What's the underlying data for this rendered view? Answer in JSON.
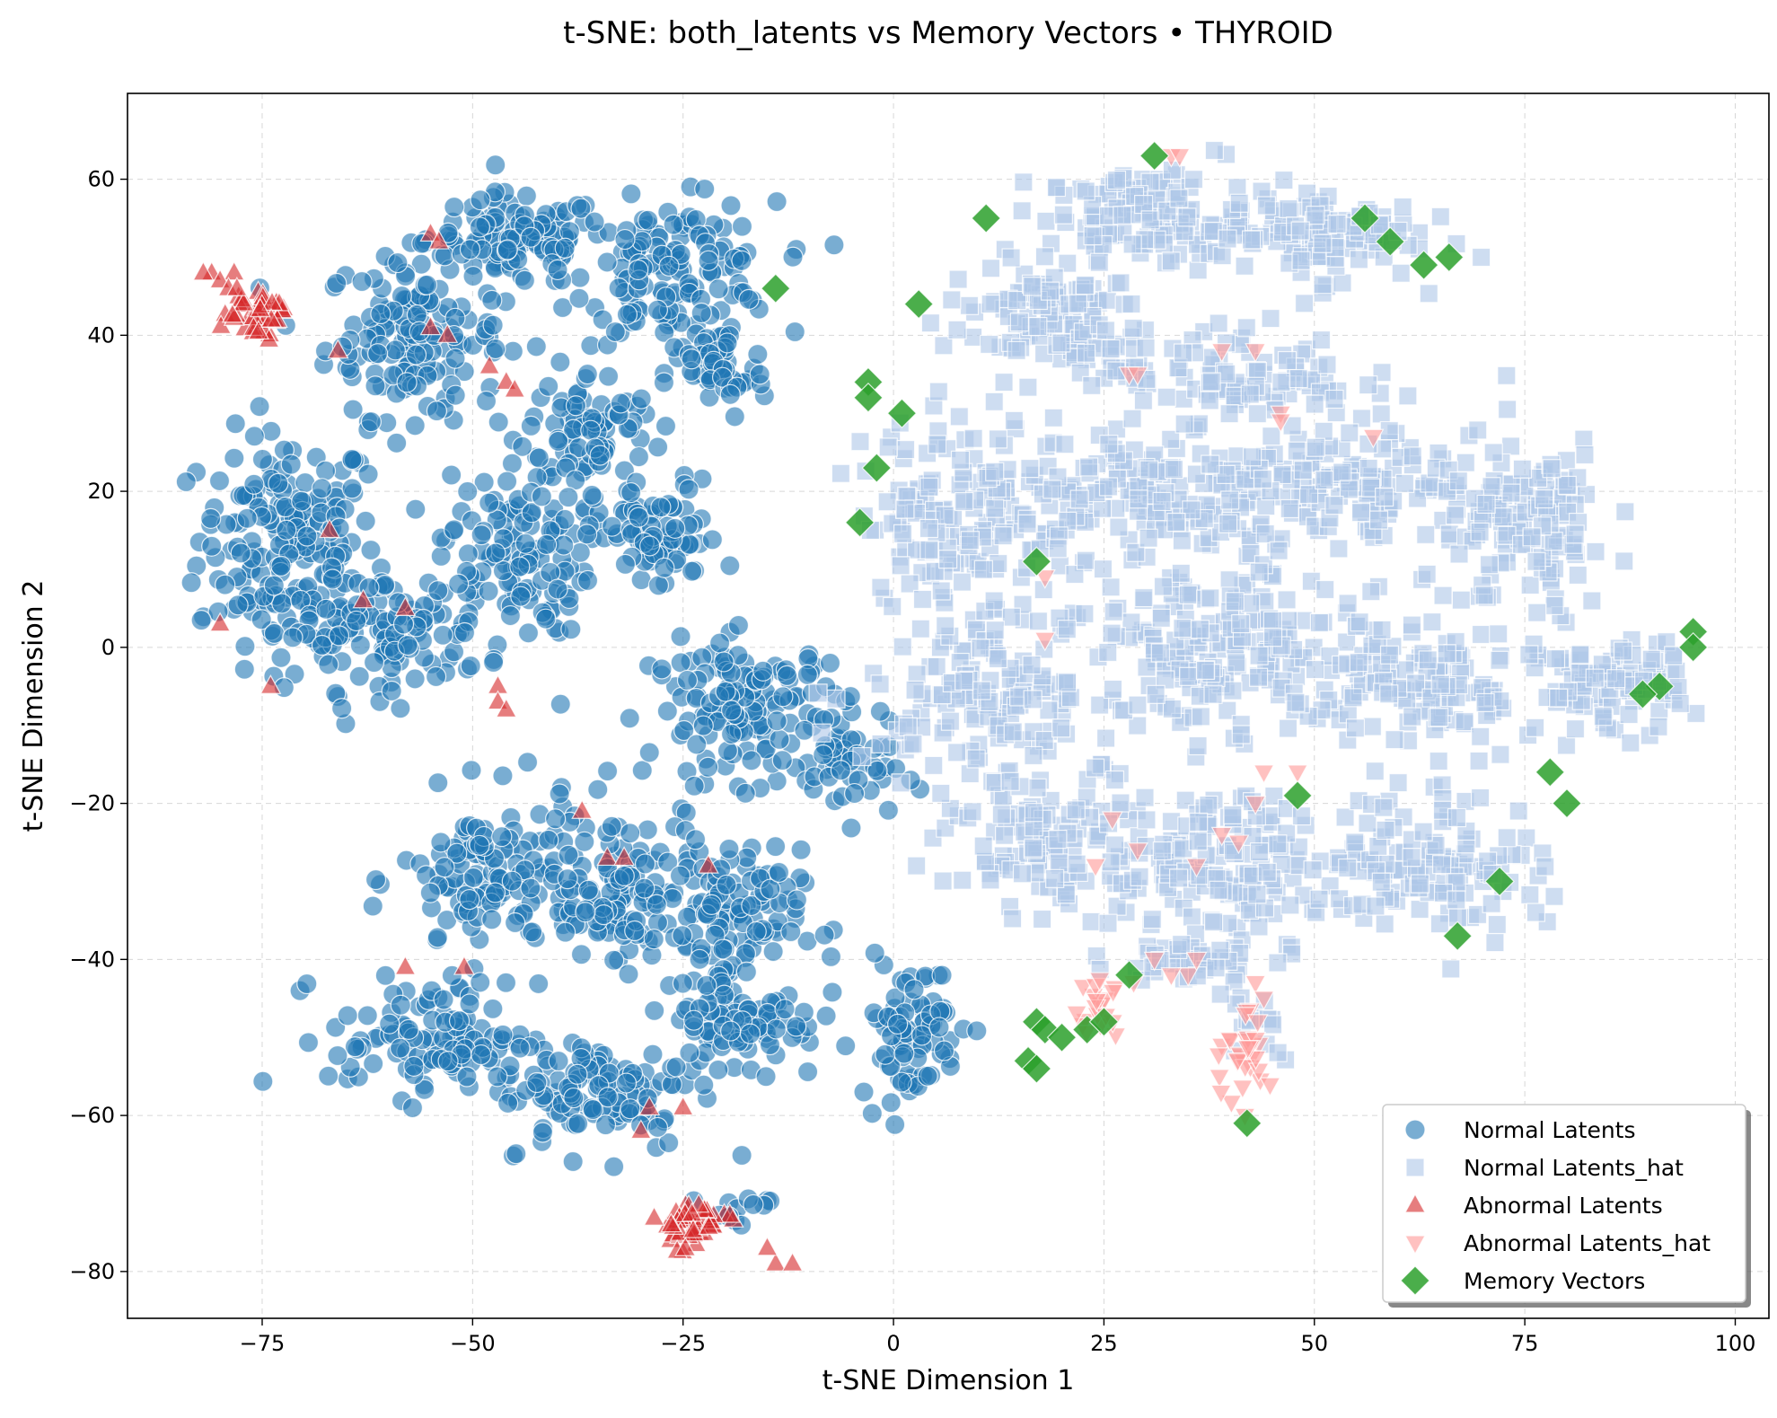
{
  "chart_data": {
    "type": "scatter",
    "title": "t-SNE: both_latents vs Memory Vectors • THYROID",
    "xlabel": "t-SNE Dimension 1",
    "ylabel": "t-SNE Dimension 2",
    "xlim": [
      -91,
      104
    ],
    "ylim": [
      -86,
      71
    ],
    "xticks": [
      -75,
      -50,
      -25,
      0,
      25,
      50,
      75,
      100
    ],
    "xtick_labels": [
      "−75",
      "−50",
      "−25",
      "0",
      "25",
      "50",
      "75",
      "100"
    ],
    "yticks": [
      -80,
      -60,
      -40,
      -20,
      0,
      20,
      40,
      60
    ],
    "ytick_labels": [
      "−80",
      "−60",
      "−40",
      "−20",
      "0",
      "20",
      "40",
      "60"
    ],
    "grid": true,
    "legend_position": "lower-right",
    "colors": {
      "normal_latents": "#1f77b4",
      "normal_latents_hat": "#aec7e8",
      "abnormal_latents": "#d62728",
      "abnormal_latents_hat": "#ff9896",
      "memory_vectors": "#2ca02c"
    },
    "series": [
      {
        "name": "Normal Latents",
        "marker": "circle",
        "color": "#1f77b4",
        "opacity": 0.6,
        "clusters": [
          {
            "center": [
              -72,
              14
            ],
            "spread": [
              7,
              9
            ],
            "count": 170
          },
          {
            "center": [
              -57,
              40
            ],
            "spread": [
              7,
              7
            ],
            "count": 150
          },
          {
            "center": [
              -45,
              52
            ],
            "spread": [
              7,
              4
            ],
            "count": 110
          },
          {
            "center": [
              -26,
              48
            ],
            "spread": [
              8,
              6
            ],
            "count": 150
          },
          {
            "center": [
              -21,
              35
            ],
            "spread": [
              4,
              4
            ],
            "count": 50
          },
          {
            "center": [
              -36,
              28
            ],
            "spread": [
              5,
              5
            ],
            "count": 80
          },
          {
            "center": [
              -45,
              12
            ],
            "spread": [
              6,
              7
            ],
            "count": 120
          },
          {
            "center": [
              -28,
              14
            ],
            "spread": [
              5,
              5
            ],
            "count": 80
          },
          {
            "center": [
              -62,
              2
            ],
            "spread": [
              9,
              5
            ],
            "count": 130
          },
          {
            "center": [
              -17,
              -8
            ],
            "spread": [
              8,
              6
            ],
            "count": 150
          },
          {
            "center": [
              -5,
              -16
            ],
            "spread": [
              4,
              4
            ],
            "count": 40
          },
          {
            "center": [
              -48,
              -30
            ],
            "spread": [
              7,
              7
            ],
            "count": 120
          },
          {
            "center": [
              -33,
              -30
            ],
            "spread": [
              6,
              6
            ],
            "count": 110
          },
          {
            "center": [
              -20,
              -35
            ],
            "spread": [
              6,
              6
            ],
            "count": 110
          },
          {
            "center": [
              -55,
              -50
            ],
            "spread": [
              8,
              5
            ],
            "count": 110
          },
          {
            "center": [
              -35,
              -57
            ],
            "spread": [
              8,
              5
            ],
            "count": 110
          },
          {
            "center": [
              -18,
              -48
            ],
            "spread": [
              6,
              5
            ],
            "count": 90
          },
          {
            "center": [
              2,
              -49
            ],
            "spread": [
              4,
              6
            ],
            "count": 80
          },
          {
            "center": [
              -19,
              -72
            ],
            "spread": [
              3,
              2
            ],
            "count": 12
          }
        ]
      },
      {
        "name": "Normal Latents_hat",
        "marker": "square",
        "color": "#aec7e8",
        "opacity": 0.6,
        "clusters": [
          {
            "center": [
              30,
              55
            ],
            "spread": [
              8,
              4
            ],
            "count": 120
          },
          {
            "center": [
              50,
              53
            ],
            "spread": [
              8,
              4
            ],
            "count": 110
          },
          {
            "center": [
              18,
              42
            ],
            "spread": [
              8,
              5
            ],
            "count": 110
          },
          {
            "center": [
              40,
              35
            ],
            "spread": [
              10,
              4
            ],
            "count": 100
          },
          {
            "center": [
              8,
              18
            ],
            "spread": [
              8,
              8
            ],
            "count": 150
          },
          {
            "center": [
              30,
              20
            ],
            "spread": [
              10,
              6
            ],
            "count": 150
          },
          {
            "center": [
              55,
              20
            ],
            "spread": [
              10,
              6
            ],
            "count": 140
          },
          {
            "center": [
              75,
              15
            ],
            "spread": [
              7,
              8
            ],
            "count": 120
          },
          {
            "center": [
              12,
              -5
            ],
            "spread": [
              10,
              7
            ],
            "count": 160
          },
          {
            "center": [
              38,
              0
            ],
            "spread": [
              10,
              7
            ],
            "count": 170
          },
          {
            "center": [
              62,
              -5
            ],
            "spread": [
              10,
              7
            ],
            "count": 150
          },
          {
            "center": [
              85,
              -5
            ],
            "spread": [
              6,
              4
            ],
            "count": 90
          },
          {
            "center": [
              20,
              -25
            ],
            "spread": [
              9,
              6
            ],
            "count": 130
          },
          {
            "center": [
              42,
              -28
            ],
            "spread": [
              10,
              6
            ],
            "count": 140
          },
          {
            "center": [
              65,
              -28
            ],
            "spread": [
              8,
              6
            ],
            "count": 110
          },
          {
            "center": [
              35,
              -40
            ],
            "spread": [
              6,
              2
            ],
            "count": 40
          },
          {
            "center": [
              43,
              -48
            ],
            "spread": [
              3,
              3
            ],
            "count": 15
          }
        ]
      },
      {
        "name": "Abnormal Latents",
        "marker": "triangle-up",
        "color": "#d62728",
        "opacity": 0.6,
        "clusters": [
          {
            "center": [
              -76,
              43
            ],
            "spread": [
              2.5,
              2.2
            ],
            "count": 40
          },
          {
            "center": [
              -24,
              -74
            ],
            "spread": [
              3,
              2.2
            ],
            "count": 45
          }
        ],
        "points": [
          [
            -81,
            48
          ],
          [
            -80,
            47
          ],
          [
            -79,
            46
          ],
          [
            -82,
            48
          ],
          [
            -78,
            46
          ],
          [
            -14,
            -79
          ],
          [
            -12,
            -79
          ],
          [
            -15,
            -77
          ],
          [
            -55,
            53
          ],
          [
            -54,
            52
          ],
          [
            -55,
            41
          ],
          [
            -53,
            40
          ],
          [
            -66,
            38
          ],
          [
            -48,
            36
          ],
          [
            -46,
            34
          ],
          [
            -45,
            33
          ],
          [
            -67,
            15
          ],
          [
            -63,
            6
          ],
          [
            -58,
            5
          ],
          [
            -80,
            3
          ],
          [
            -74,
            -5
          ],
          [
            -47,
            -5
          ],
          [
            -47,
            -7
          ],
          [
            -46,
            -8
          ],
          [
            -37,
            -21
          ],
          [
            -34,
            -27
          ],
          [
            -32,
            -27
          ],
          [
            -22,
            -28
          ],
          [
            -58,
            -41
          ],
          [
            -51,
            -41
          ],
          [
            -29,
            -59
          ],
          [
            -25,
            -59
          ],
          [
            -30,
            -62
          ]
        ]
      },
      {
        "name": "Abnormal Latents_hat",
        "marker": "triangle-down",
        "color": "#ff9896",
        "opacity": 0.6,
        "clusters": [
          {
            "center": [
              24,
              -46
            ],
            "spread": [
              2.5,
              3
            ],
            "count": 20
          },
          {
            "center": [
              41,
              -53
            ],
            "spread": [
              2.5,
              4
            ],
            "count": 30
          }
        ],
        "points": [
          [
            33,
            63
          ],
          [
            34,
            63
          ],
          [
            28,
            35
          ],
          [
            29,
            35
          ],
          [
            39,
            38
          ],
          [
            43,
            38
          ],
          [
            46,
            30
          ],
          [
            46,
            29
          ],
          [
            57,
            27
          ],
          [
            18,
            9
          ],
          [
            18,
            1
          ],
          [
            44,
            -16
          ],
          [
            48,
            -16
          ],
          [
            43,
            -20
          ],
          [
            26,
            -22
          ],
          [
            29,
            -26
          ],
          [
            24,
            -28
          ],
          [
            41,
            -25
          ],
          [
            36,
            -28
          ],
          [
            39,
            -24
          ],
          [
            31,
            -40
          ],
          [
            35,
            -42
          ],
          [
            33,
            -42
          ],
          [
            36,
            -40
          ],
          [
            43,
            -43
          ],
          [
            44,
            -45
          ]
        ]
      },
      {
        "name": "Memory Vectors",
        "marker": "diamond",
        "color": "#2ca02c",
        "opacity": 0.85,
        "points": [
          [
            31,
            63
          ],
          [
            11,
            55
          ],
          [
            56,
            55
          ],
          [
            59,
            52
          ],
          [
            63,
            49
          ],
          [
            66,
            50
          ],
          [
            -14,
            46
          ],
          [
            3,
            44
          ],
          [
            -3,
            34
          ],
          [
            -3,
            32
          ],
          [
            1,
            30
          ],
          [
            -2,
            23
          ],
          [
            -4,
            16
          ],
          [
            17,
            11
          ],
          [
            95,
            2
          ],
          [
            95,
            0
          ],
          [
            91,
            -5
          ],
          [
            89,
            -6
          ],
          [
            78,
            -16
          ],
          [
            80,
            -20
          ],
          [
            48,
            -19
          ],
          [
            72,
            -30
          ],
          [
            67,
            -37
          ],
          [
            28,
            -42
          ],
          [
            17,
            -48
          ],
          [
            18,
            -49
          ],
          [
            20,
            -50
          ],
          [
            23,
            -49
          ],
          [
            25,
            -48
          ],
          [
            16,
            -53
          ],
          [
            17,
            -54
          ],
          [
            42,
            -61
          ]
        ]
      }
    ]
  }
}
